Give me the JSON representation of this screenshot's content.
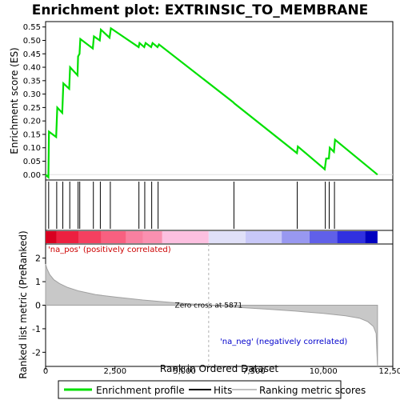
{
  "chart_data": [
    {
      "type": "line",
      "title": "Enrichment plot: EXTRINSIC_TO_MEMBRANE",
      "ylabel": "Enrichment score (ES)",
      "xlim": [
        0,
        12500
      ],
      "ylim": [
        -0.02,
        0.57
      ],
      "yticks": [
        "0.00",
        "0.05",
        "0.10",
        "0.15",
        "0.20",
        "0.25",
        "0.30",
        "0.35",
        "0.40",
        "0.45",
        "0.50",
        "0.55"
      ],
      "series": [
        {
          "name": "Enrichment profile",
          "color": "#00e000",
          "x": [
            0,
            100,
            120,
            380,
            420,
            600,
            640,
            850,
            880,
            1150,
            1170,
            1220,
            1250,
            1700,
            1740,
            1950,
            1990,
            2300,
            2350,
            3350,
            3380,
            3550,
            3600,
            3800,
            3850,
            4030,
            4080,
            6750,
            6800,
            9050,
            9080,
            10050,
            10100,
            10200,
            10230,
            10380,
            10420,
            11950
          ],
          "y": [
            0.0,
            -0.01,
            0.16,
            0.14,
            0.25,
            0.23,
            0.34,
            0.32,
            0.4,
            0.37,
            0.44,
            0.45,
            0.505,
            0.47,
            0.515,
            0.5,
            0.54,
            0.51,
            0.545,
            0.475,
            0.49,
            0.475,
            0.49,
            0.475,
            0.49,
            0.475,
            0.485,
            0.27,
            0.265,
            0.08,
            0.105,
            0.02,
            0.06,
            0.06,
            0.1,
            0.085,
            0.13,
            0.0
          ]
        }
      ]
    },
    {
      "type": "scatter",
      "name": "Hits",
      "hit_positions": [
        110,
        400,
        620,
        870,
        1170,
        1230,
        1720,
        1970,
        2330,
        3360,
        3570,
        3820,
        4050,
        6780,
        9060,
        10070,
        10210,
        10400
      ]
    },
    {
      "type": "area",
      "ylabel": "Ranked list metric (PreRanked)",
      "xlabel": "Rank in Ordered Dataset",
      "xlim": [
        0,
        12500
      ],
      "ylim": [
        -2.6,
        2.6
      ],
      "xticks": [
        "0",
        "2,500",
        "5,000",
        "7,500",
        "10,000",
        "12,500"
      ],
      "yticks": [
        "2",
        "1",
        "0",
        "-1",
        "-2"
      ],
      "x": [
        0,
        50,
        150,
        300,
        500,
        800,
        1200,
        1800,
        2500,
        3500,
        4500,
        5871,
        7000,
        8000,
        9000,
        10000,
        10800,
        11300,
        11600,
        11800,
        11900,
        11950
      ],
      "y": [
        1.75,
        1.55,
        1.3,
        1.08,
        0.92,
        0.75,
        0.6,
        0.45,
        0.35,
        0.22,
        0.12,
        0.0,
        -0.1,
        -0.17,
        -0.25,
        -0.35,
        -0.45,
        -0.55,
        -0.7,
        -0.9,
        -1.2,
        -2.6
      ],
      "zero_cross_label": "Zero cross at 5871",
      "pos_label": "'na_pos' (positively correlated)",
      "neg_label": "'na_neg' (negatively correlated)"
    }
  ],
  "legend": {
    "items": [
      {
        "label": "Enrichment profile",
        "color": "#00e000"
      },
      {
        "label": "Hits",
        "color": "#000000"
      },
      {
        "label": "Ranking metric scores",
        "color": "#c0c0c0"
      }
    ]
  },
  "colors": {
    "positive_bar": "#e0002a",
    "negative_bar": "#0000d0",
    "zero_line": "#c0c0c0"
  }
}
